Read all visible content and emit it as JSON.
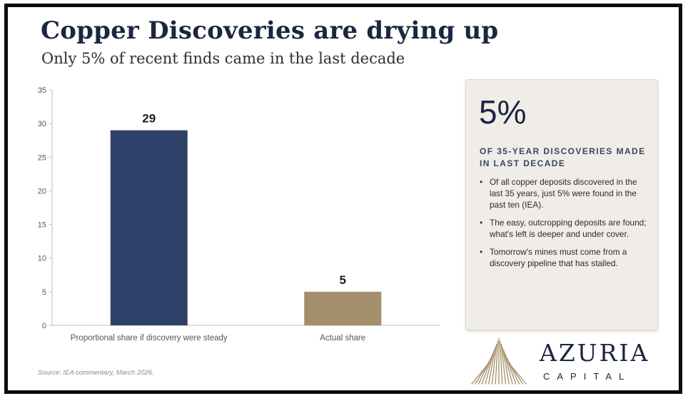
{
  "header": {
    "title": "Copper Discoveries are drying up",
    "subtitle": "Only 5% of recent finds came in the last decade"
  },
  "chart_data": {
    "type": "bar",
    "categories": [
      "Proportional share if discovery were steady",
      "Actual share"
    ],
    "values": [
      29,
      5
    ],
    "data_labels": [
      "29",
      "5"
    ],
    "bar_colors": [
      "#2f4068",
      "#a58e6a"
    ],
    "ylim": [
      0,
      35
    ],
    "yticks": [
      "0",
      "5",
      "10",
      "15",
      "20",
      "25",
      "30",
      "35"
    ],
    "grid": false,
    "legend": "none",
    "xlabel": "",
    "ylabel": ""
  },
  "source": "Source: IEA commentary, March 2026.",
  "panel": {
    "stat": "5%",
    "caption": "OF 35-YEAR DISCOVERIES MADE IN LAST DECADE",
    "bullets": [
      "Of all copper deposits discovered in the last 35 years, just 5% were found in the past ten (IEA).",
      "The easy, outcropping deposits are found; what's left is deeper and under cover.",
      "Tomorrow's mines must come from a discovery pipeline that has stalled."
    ]
  },
  "brand": {
    "name": "AZURIA",
    "sub": "CAPITAL"
  }
}
